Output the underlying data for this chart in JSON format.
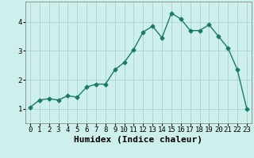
{
  "x": [
    0,
    1,
    2,
    3,
    4,
    5,
    6,
    7,
    8,
    9,
    10,
    11,
    12,
    13,
    14,
    15,
    16,
    17,
    18,
    19,
    20,
    21,
    22,
    23
  ],
  "y": [
    1.05,
    1.3,
    1.35,
    1.3,
    1.45,
    1.4,
    1.75,
    1.85,
    1.85,
    2.35,
    2.6,
    3.05,
    3.65,
    3.85,
    3.45,
    4.3,
    4.1,
    3.7,
    3.7,
    3.9,
    3.5,
    3.1,
    2.35,
    1.0
  ],
  "line_color": "#1a7a6a",
  "marker": "D",
  "marker_size": 2.5,
  "bg_color": "#cef0ec",
  "grid_color": "#b0d8d2",
  "xlabel": "Humidex (Indice chaleur)",
  "xlim": [
    -0.5,
    23.5
  ],
  "ylim": [
    0.5,
    4.7
  ],
  "yticks": [
    1,
    2,
    3,
    4
  ],
  "xticks": [
    0,
    1,
    2,
    3,
    4,
    5,
    6,
    7,
    8,
    9,
    10,
    11,
    12,
    13,
    14,
    15,
    16,
    17,
    18,
    19,
    20,
    21,
    22,
    23
  ],
  "tick_fontsize": 6.5,
  "xlabel_fontsize": 8,
  "line_width": 1.0
}
